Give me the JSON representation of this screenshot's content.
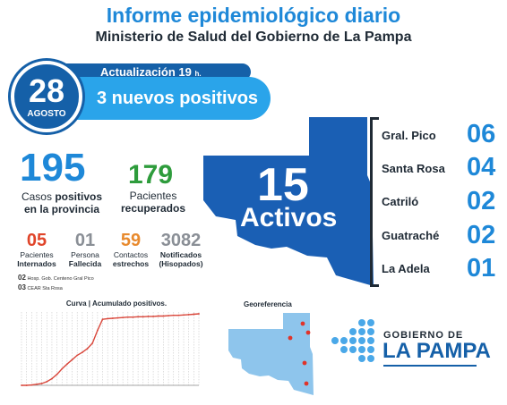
{
  "header": {
    "title": "Informe epidemiológico diario",
    "subtitle": "Ministerio de Salud del Gobierno de La Pampa"
  },
  "update": {
    "day": "28",
    "month": "AGOSTO",
    "update_label": "Actualización 19",
    "update_unit": "h.",
    "new_positive": "3 nuevos positivos"
  },
  "stats": {
    "total_cases": {
      "value": "195",
      "label_1": "Casos",
      "label_bold": "positivos",
      "label_2": "en la provincia"
    },
    "recovered": {
      "value": "179",
      "label_1": "Pacientes",
      "label_2": "recuperados"
    },
    "hospitalized": {
      "value": "05",
      "label_1": "Pacientes",
      "label_2": "Internados"
    },
    "deceased": {
      "value": "01",
      "label_1": "Persona",
      "label_2": "Fallecida"
    },
    "close_contacts": {
      "value": "59",
      "label_1": "Contactos",
      "label_2": "estrechos"
    },
    "notified": {
      "value": "3082",
      "label_1": "Notificados",
      "label_2": "(Hisopados)"
    }
  },
  "notes": [
    {
      "count": "02",
      "text": "Hosp. Gob. Centeno Gral Pico"
    },
    {
      "count": "03",
      "text": "CEAR Sta Rosa"
    }
  ],
  "active": {
    "value": "15",
    "label": "Activos"
  },
  "localities": [
    {
      "name": "Gral. Pico",
      "count": "06"
    },
    {
      "name": "Santa Rosa",
      "count": "04"
    },
    {
      "name": "Catriló",
      "count": "02"
    },
    {
      "name": "Guatraché",
      "count": "02"
    },
    {
      "name": "La Adela",
      "count": "01"
    }
  ],
  "chart_title": "Curva | Acumulado positivos.",
  "geo_title": "Georeferencia",
  "logo": {
    "top": "GOBIERNO DE",
    "bottom": "LA PAMPA"
  },
  "colors": {
    "primary_blue": "#1e88d8",
    "dark_blue": "#1560a8",
    "light_blue": "#2aa4ea",
    "recovered_green": "#2e9c3c",
    "accent_red": "#e0452a",
    "curve_red": "#d9473b"
  },
  "chart_data": {
    "type": "line",
    "title": "Curva | Acumulado positivos.",
    "xlabel": "",
    "ylabel": "",
    "grid": true,
    "series": [
      {
        "values": [
          0,
          0,
          1,
          3,
          5,
          10,
          18,
          30,
          45,
          58,
          70,
          82,
          90,
          100,
          115,
          150,
          180,
          182,
          183,
          184,
          185,
          186,
          186,
          187,
          187,
          188,
          188,
          189,
          189,
          190,
          191,
          191,
          192,
          193,
          194,
          195
        ]
      }
    ],
    "ylim": [
      0,
      200
    ]
  }
}
